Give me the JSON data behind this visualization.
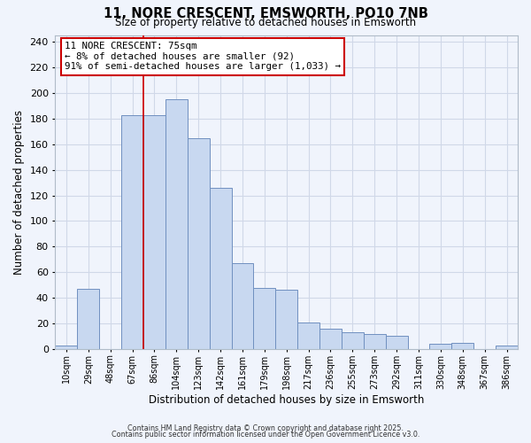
{
  "title": "11, NORE CRESCENT, EMSWORTH, PO10 7NB",
  "subtitle": "Size of property relative to detached houses in Emsworth",
  "xlabel": "Distribution of detached houses by size in Emsworth",
  "ylabel": "Number of detached properties",
  "bar_labels": [
    "10sqm",
    "29sqm",
    "48sqm",
    "67sqm",
    "86sqm",
    "104sqm",
    "123sqm",
    "142sqm",
    "161sqm",
    "179sqm",
    "198sqm",
    "217sqm",
    "236sqm",
    "255sqm",
    "273sqm",
    "292sqm",
    "311sqm",
    "330sqm",
    "348sqm",
    "367sqm",
    "386sqm"
  ],
  "bar_values": [
    3,
    47,
    0,
    183,
    183,
    195,
    165,
    126,
    67,
    48,
    46,
    21,
    16,
    13,
    12,
    10,
    0,
    4,
    5,
    0,
    3
  ],
  "bar_color": "#c8d8f0",
  "bar_edge_color": "#7090c0",
  "annotation_line_index": 3,
  "annotation_text_line1": "11 NORE CRESCENT: 75sqm",
  "annotation_text_line2": "← 8% of detached houses are smaller (92)",
  "annotation_text_line3": "91% of semi-detached houses are larger (1,033) →",
  "annotation_box_color": "#ffffff",
  "annotation_line_color": "#cc0000",
  "grid_color": "#d0d8e8",
  "background_color": "#f0f4fc",
  "plot_bg_color": "#f0f4fc",
  "ylim": [
    0,
    245
  ],
  "yticks": [
    0,
    20,
    40,
    60,
    80,
    100,
    120,
    140,
    160,
    180,
    200,
    220,
    240
  ],
  "footer_line1": "Contains HM Land Registry data © Crown copyright and database right 2025.",
  "footer_line2": "Contains public sector information licensed under the Open Government Licence v3.0."
}
